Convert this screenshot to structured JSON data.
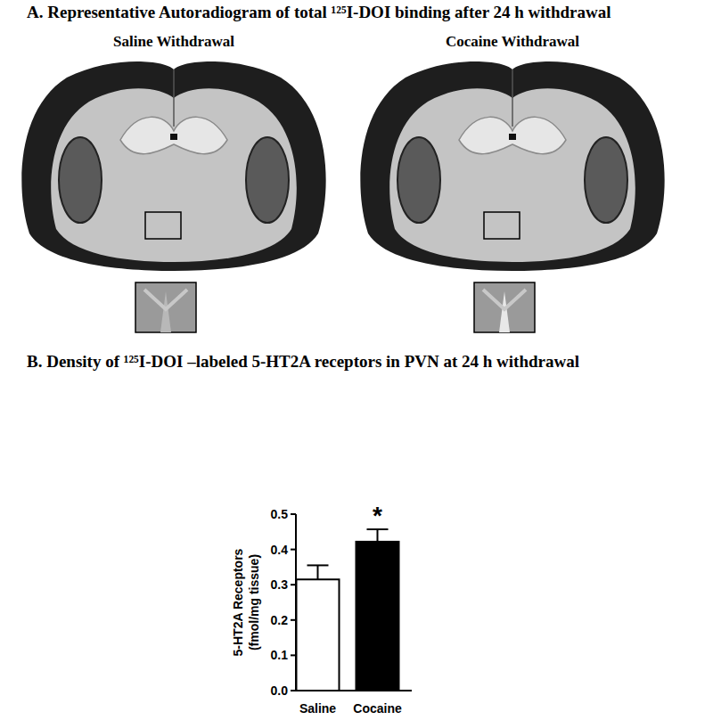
{
  "panel_a": {
    "title": "A. Representative Autoradiogram of total ¹²⁵I-DOI binding after 24 h withdrawal",
    "images": [
      {
        "label": "Saline Withdrawal"
      },
      {
        "label": "Cocaine Withdrawal"
      }
    ]
  },
  "chart_data": {
    "type": "bar",
    "title": "B. Density of ¹²⁵I-DOI –labeled 5-HT2A receptors in PVN at 24 h withdrawal",
    "categories": [
      "Saline",
      "Cocaine"
    ],
    "values": [
      0.315,
      0.422
    ],
    "errors": [
      0.04,
      0.035
    ],
    "colors": [
      "#ffffff",
      "#000000"
    ],
    "y_label": [
      "5-HT2A Receptors",
      "(fmol/mg tissue)"
    ],
    "ylim": [
      0,
      0.5
    ],
    "yticks": [
      {
        "value": 0,
        "label": "0.0"
      },
      0.1,
      0.2,
      0.3,
      0.4,
      0.5
    ],
    "annotations": [
      {
        "category": "Cocaine",
        "text": "*"
      }
    ],
    "grid": false
  }
}
